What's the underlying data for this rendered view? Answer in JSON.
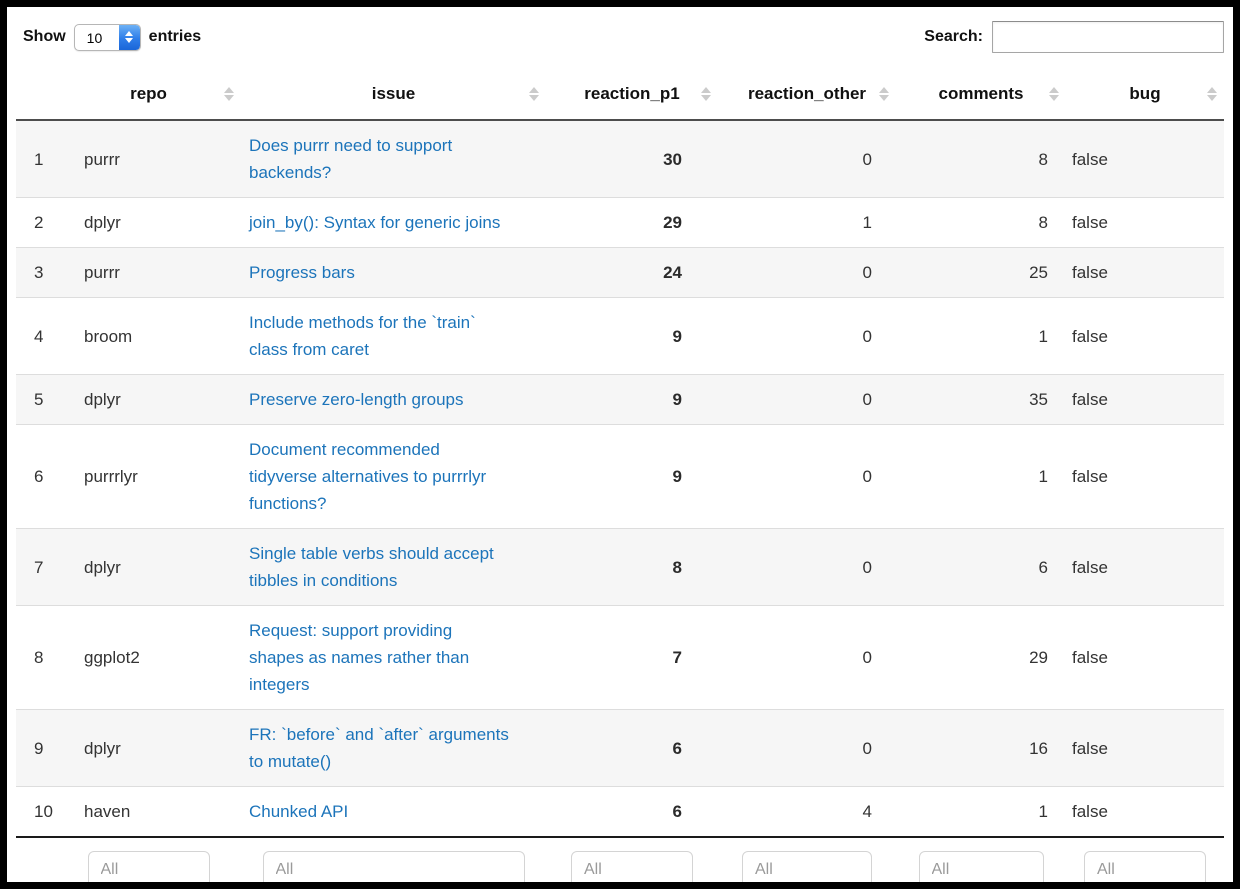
{
  "controls": {
    "show_label": "Show",
    "entries_label": "entries",
    "page_length": "10",
    "length_options": [
      "10"
    ],
    "search_label": "Search:",
    "search_value": "",
    "filter_placeholder": "All"
  },
  "icons": {
    "sort_icon": "up-down-triangles",
    "select_stepper_icon": "up-down-chevrons"
  },
  "colors": {
    "link_blue": "#1c74ba",
    "stripe_gray": "#f6f6f6",
    "header_rule": "#4d4d4d",
    "select_stepper_blue": "#2e7de9",
    "frame_black": "#000000"
  },
  "table": {
    "columns": [
      {
        "key": "index",
        "label": "",
        "sortable": false,
        "filter": false
      },
      {
        "key": "repo",
        "label": "repo",
        "sortable": true,
        "filter": true
      },
      {
        "key": "issue",
        "label": "issue",
        "sortable": true,
        "filter": true
      },
      {
        "key": "reaction_p1",
        "label": "reaction_p1",
        "sortable": true,
        "filter": true
      },
      {
        "key": "reaction_other",
        "label": "reaction_other",
        "sortable": true,
        "filter": true
      },
      {
        "key": "comments",
        "label": "comments",
        "sortable": true,
        "filter": true
      },
      {
        "key": "bug",
        "label": "bug",
        "sortable": true,
        "filter": true
      }
    ],
    "rows": [
      {
        "index": "1",
        "repo": "purrr",
        "issue_lines": [
          "Does purrr need to support",
          "backends?"
        ],
        "reaction_p1": "30",
        "reaction_other": "0",
        "comments": "8",
        "bug": "false"
      },
      {
        "index": "2",
        "repo": "dplyr",
        "issue_lines": [
          "join_by(): Syntax for generic joins"
        ],
        "reaction_p1": "29",
        "reaction_other": "1",
        "comments": "8",
        "bug": "false"
      },
      {
        "index": "3",
        "repo": "purrr",
        "issue_lines": [
          "Progress bars"
        ],
        "reaction_p1": "24",
        "reaction_other": "0",
        "comments": "25",
        "bug": "false"
      },
      {
        "index": "4",
        "repo": "broom",
        "issue_lines": [
          "Include methods for the `train`",
          "class from caret"
        ],
        "reaction_p1": "9",
        "reaction_other": "0",
        "comments": "1",
        "bug": "false"
      },
      {
        "index": "5",
        "repo": "dplyr",
        "issue_lines": [
          "Preserve zero-length groups"
        ],
        "reaction_p1": "9",
        "reaction_other": "0",
        "comments": "35",
        "bug": "false"
      },
      {
        "index": "6",
        "repo": "purrrlyr",
        "issue_lines": [
          "Document recommended",
          "tidyverse alternatives to purrrlyr",
          "functions?"
        ],
        "reaction_p1": "9",
        "reaction_other": "0",
        "comments": "1",
        "bug": "false"
      },
      {
        "index": "7",
        "repo": "dplyr",
        "issue_lines": [
          "Single table verbs should accept",
          "tibbles in conditions"
        ],
        "reaction_p1": "8",
        "reaction_other": "0",
        "comments": "6",
        "bug": "false"
      },
      {
        "index": "8",
        "repo": "ggplot2",
        "issue_lines": [
          "Request: support providing",
          "shapes as names rather than",
          "integers"
        ],
        "reaction_p1": "7",
        "reaction_other": "0",
        "comments": "29",
        "bug": "false"
      },
      {
        "index": "9",
        "repo": "dplyr",
        "issue_lines": [
          "FR: `before` and `after` arguments",
          "to mutate()"
        ],
        "reaction_p1": "6",
        "reaction_other": "0",
        "comments": "16",
        "bug": "false"
      },
      {
        "index": "10",
        "repo": "haven",
        "issue_lines": [
          "Chunked API"
        ],
        "reaction_p1": "6",
        "reaction_other": "4",
        "comments": "1",
        "bug": "false"
      }
    ]
  }
}
